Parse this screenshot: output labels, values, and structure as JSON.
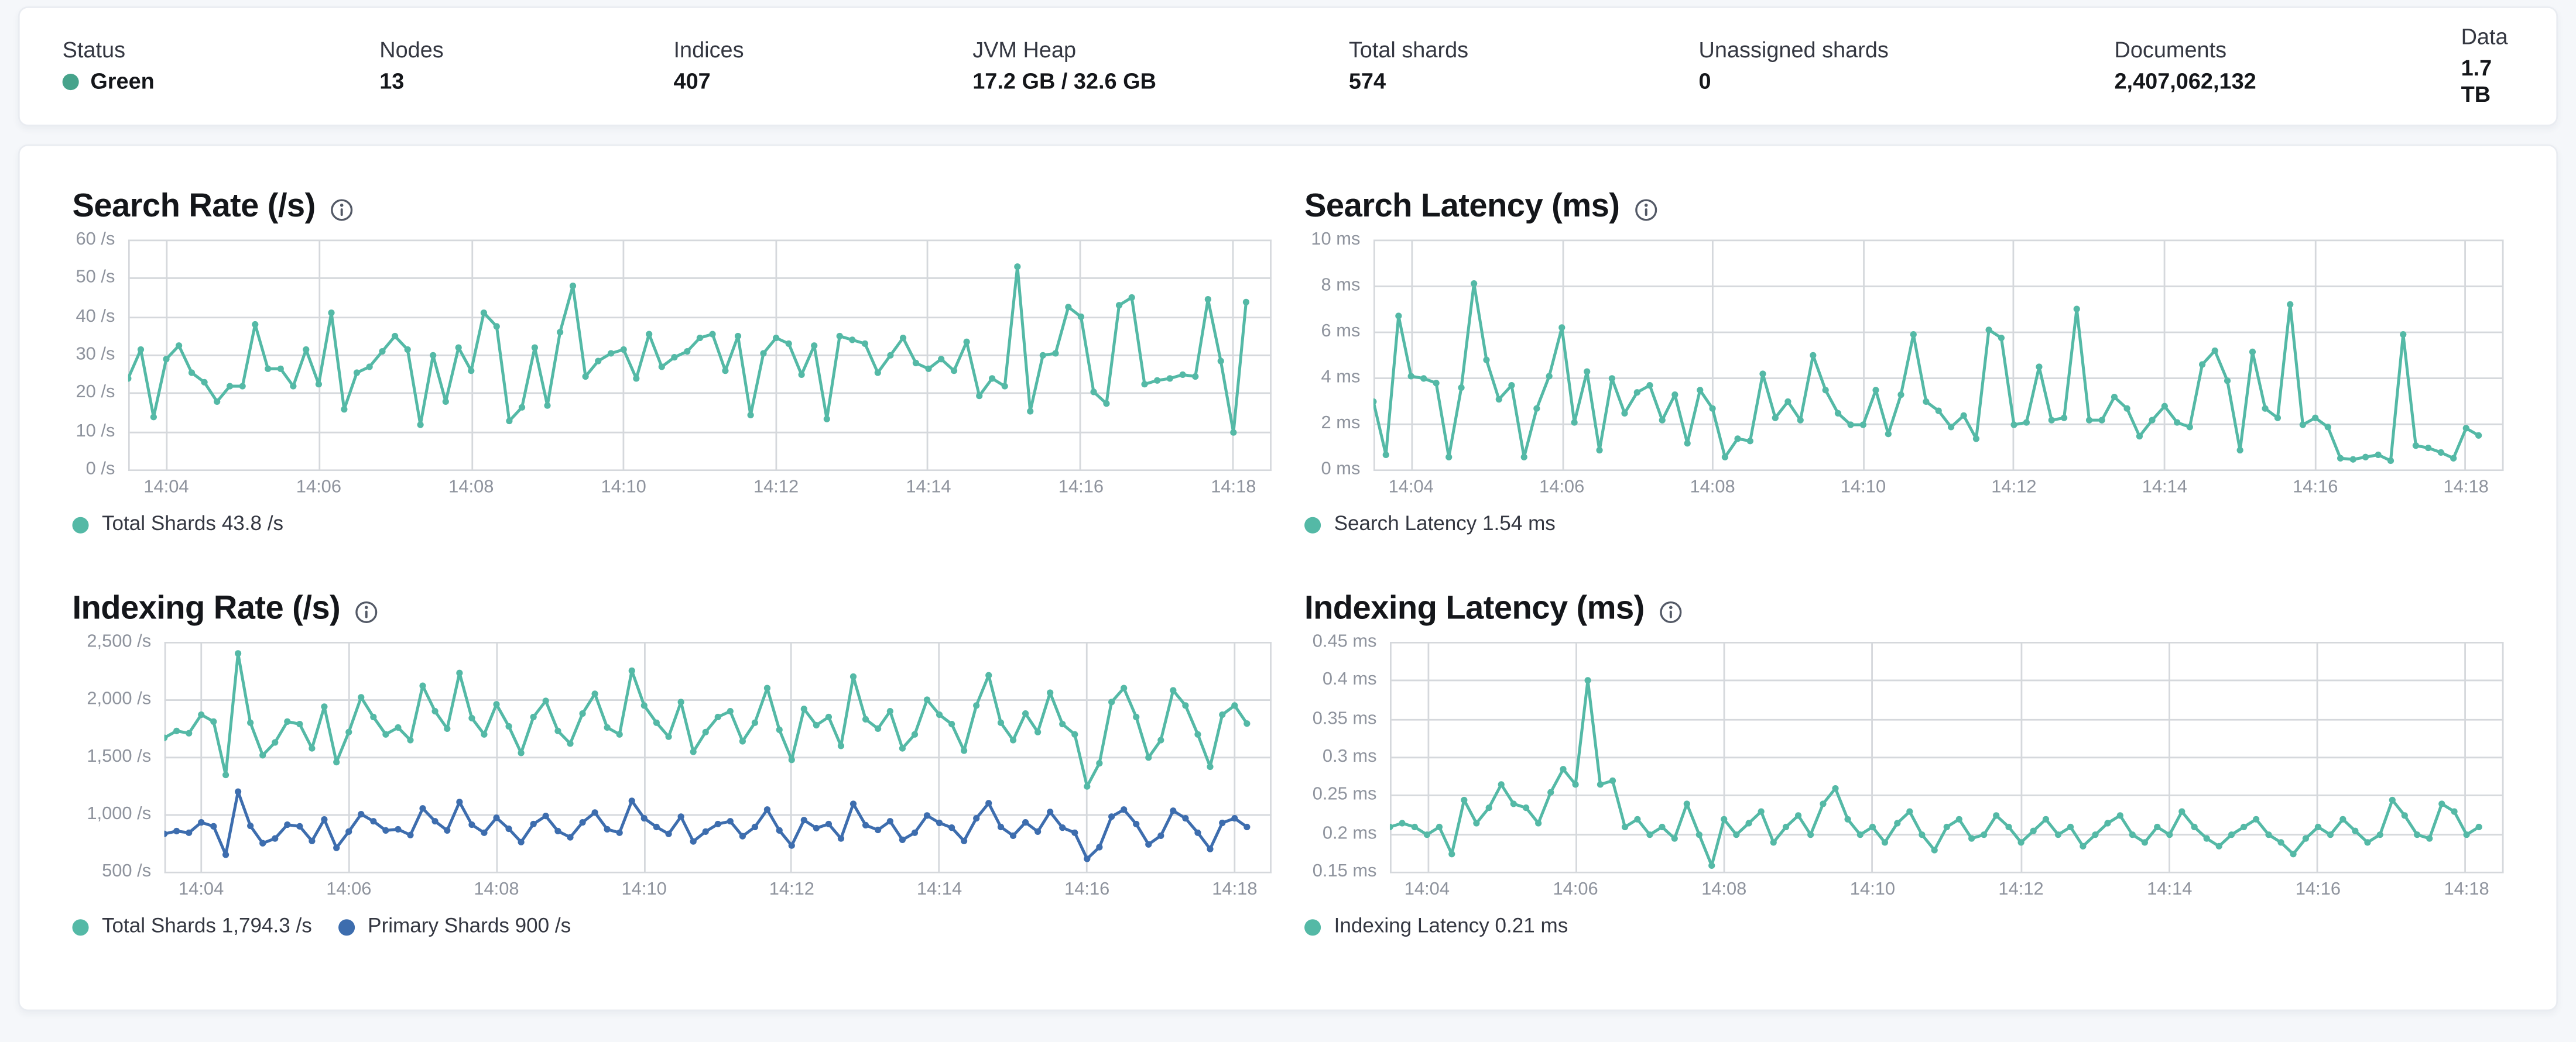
{
  "header": {
    "stats": [
      {
        "label": "Status",
        "value": "Green",
        "type": "health",
        "dot_color": "#46a38b"
      },
      {
        "label": "Nodes",
        "value": "13"
      },
      {
        "label": "Indices",
        "value": "407"
      },
      {
        "label": "JVM Heap",
        "value": "17.2 GB / 32.6 GB"
      },
      {
        "label": "Total shards",
        "value": "574"
      },
      {
        "label": "Unassigned shards",
        "value": "0"
      },
      {
        "label": "Documents",
        "value": "2,407,062,132"
      },
      {
        "label": "Data",
        "value": "1.7 TB"
      }
    ]
  },
  "colors": {
    "teal_series": "#54b9a6",
    "blue_series": "#3d6dae",
    "grid": "#d5d8dc",
    "axis_text": "#8e939d"
  },
  "chart_data": [
    {
      "type": "line",
      "title": "Search Rate (/s)",
      "info_icon": "info-circle",
      "x_tick_labels": [
        "14:04",
        "14:06",
        "14:08",
        "14:10",
        "14:12",
        "14:14",
        "14:16",
        "14:18"
      ],
      "x_tick_indices": [
        3,
        15,
        27,
        39,
        51,
        63,
        75,
        87
      ],
      "x_domain_points": 91,
      "ylim": [
        0,
        60
      ],
      "y_tick_labels": [
        "60 /s",
        "50 /s",
        "40 /s",
        "30 /s",
        "20 /s",
        "10 /s",
        "0 /s"
      ],
      "grid": true,
      "legend_position": "bottom",
      "series": [
        {
          "name": "Total Shards",
          "current": "43.8 /s",
          "legend_label": "Total Shards 43.8 /s",
          "color": "#54b9a6",
          "values": [
            24,
            31.5,
            14,
            29,
            32.5,
            25.5,
            23,
            18,
            22,
            22,
            38,
            26.5,
            26.5,
            22,
            31.5,
            22.5,
            41,
            16,
            25.5,
            27,
            31,
            35,
            31.5,
            12,
            30,
            18,
            32,
            26,
            41,
            37.5,
            13,
            16.5,
            32,
            17,
            36,
            48,
            24.5,
            28.5,
            30.5,
            31.5,
            24,
            35.5,
            27,
            29.5,
            31,
            34.5,
            35.5,
            26,
            35,
            14.5,
            30.5,
            34.5,
            33,
            25,
            32.5,
            13.5,
            35,
            34,
            33,
            25.5,
            30,
            34.5,
            28,
            26.5,
            29,
            26,
            33.5,
            19.5,
            24,
            22,
            53,
            15.5,
            30,
            30.5,
            42.5,
            40,
            20.5,
            17.5,
            43,
            45,
            22.5,
            23.5,
            24,
            25,
            24.5,
            44.5,
            28.5,
            10,
            43.8
          ]
        }
      ]
    },
    {
      "type": "line",
      "title": "Search Latency (ms)",
      "info_icon": "info-circle",
      "x_tick_labels": [
        "14:04",
        "14:06",
        "14:08",
        "14:10",
        "14:12",
        "14:14",
        "14:16",
        "14:18"
      ],
      "x_tick_indices": [
        3,
        15,
        27,
        39,
        51,
        63,
        75,
        87
      ],
      "x_domain_points": 91,
      "ylim": [
        0,
        10
      ],
      "y_tick_labels": [
        "10 ms",
        "8 ms",
        "6 ms",
        "4 ms",
        "2 ms",
        "0 ms"
      ],
      "grid": true,
      "legend_position": "bottom",
      "series": [
        {
          "name": "Search Latency",
          "current": "1.54 ms",
          "legend_label": "Search Latency 1.54 ms",
          "color": "#54b9a6",
          "values": [
            3,
            0.7,
            6.7,
            4.1,
            4,
            3.8,
            0.6,
            3.6,
            8.1,
            4.8,
            3.1,
            3.7,
            0.6,
            2.7,
            4.1,
            6.2,
            2.1,
            4.3,
            0.9,
            4,
            2.5,
            3.4,
            3.7,
            2.2,
            3.3,
            1.2,
            3.5,
            2.7,
            0.6,
            1.4,
            1.3,
            4.2,
            2.3,
            3,
            2.2,
            5,
            3.5,
            2.5,
            2,
            2,
            3.5,
            1.6,
            3.3,
            5.9,
            3,
            2.6,
            1.9,
            2.4,
            1.4,
            6.1,
            5.75,
            2,
            2.1,
            4.5,
            2.2,
            2.3,
            7,
            2.2,
            2.2,
            3.2,
            2.7,
            1.5,
            2.2,
            2.8,
            2.1,
            1.9,
            4.6,
            5.2,
            3.9,
            0.9,
            5.15,
            2.7,
            2.3,
            7.2,
            2,
            2.3,
            1.9,
            0.55,
            0.5,
            0.6,
            0.7,
            0.45,
            5.9,
            1.1,
            1,
            0.8,
            0.55,
            1.85,
            1.54
          ]
        }
      ]
    },
    {
      "type": "line",
      "title": "Indexing Rate (/s)",
      "info_icon": "info-circle",
      "x_tick_labels": [
        "14:04",
        "14:06",
        "14:08",
        "14:10",
        "14:12",
        "14:14",
        "14:16",
        "14:18"
      ],
      "x_tick_indices": [
        3,
        15,
        27,
        39,
        51,
        63,
        75,
        87
      ],
      "x_domain_points": 91,
      "ylim": [
        500,
        2500
      ],
      "y_tick_labels": [
        "2,500 /s",
        "2,000 /s",
        "1,500 /s",
        "1,000 /s",
        "500 /s"
      ],
      "grid": true,
      "legend_position": "bottom",
      "series": [
        {
          "name": "Total Shards",
          "current": "1,794.3 /s",
          "legend_label": "Total Shards 1,794.3 /s",
          "color": "#54b9a6",
          "values": [
            1670,
            1730,
            1710,
            1870,
            1810,
            1350,
            2400,
            1800,
            1520,
            1630,
            1810,
            1790,
            1580,
            1940,
            1460,
            1720,
            2020,
            1850,
            1700,
            1760,
            1650,
            2120,
            1900,
            1750,
            2230,
            1840,
            1700,
            1960,
            1770,
            1540,
            1850,
            1990,
            1730,
            1620,
            1880,
            2050,
            1760,
            1700,
            2250,
            1950,
            1800,
            1680,
            1980,
            1550,
            1720,
            1850,
            1900,
            1640,
            1800,
            2100,
            1740,
            1480,
            1920,
            1780,
            1850,
            1600,
            2200,
            1830,
            1750,
            1900,
            1580,
            1700,
            2000,
            1870,
            1790,
            1560,
            1950,
            2210,
            1800,
            1650,
            1880,
            1720,
            2060,
            1790,
            1700,
            1250,
            1450,
            1980,
            2100,
            1850,
            1500,
            1650,
            2080,
            1950,
            1700,
            1420,
            1870,
            1950,
            1794.3
          ]
        },
        {
          "name": "Primary Shards",
          "current": "900 /s",
          "legend_label": "Primary Shards 900 /s",
          "color": "#3d6dae",
          "values": [
            840,
            865,
            850,
            940,
            905,
            660,
            1205,
            910,
            760,
            800,
            920,
            905,
            780,
            965,
            720,
            860,
            1010,
            950,
            870,
            880,
            830,
            1060,
            950,
            870,
            1115,
            920,
            850,
            980,
            885,
            770,
            925,
            995,
            865,
            810,
            940,
            1025,
            880,
            850,
            1125,
            975,
            900,
            840,
            990,
            775,
            860,
            925,
            950,
            820,
            900,
            1050,
            870,
            740,
            960,
            890,
            925,
            800,
            1100,
            915,
            875,
            950,
            790,
            850,
            1000,
            935,
            895,
            780,
            975,
            1105,
            900,
            825,
            940,
            860,
            1030,
            895,
            850,
            625,
            725,
            990,
            1050,
            925,
            750,
            825,
            1040,
            975,
            850,
            710,
            935,
            975,
            900
          ]
        }
      ]
    },
    {
      "type": "line",
      "title": "Indexing Latency (ms)",
      "info_icon": "info-circle",
      "x_tick_labels": [
        "14:04",
        "14:06",
        "14:08",
        "14:10",
        "14:12",
        "14:14",
        "14:16",
        "14:18"
      ],
      "x_tick_indices": [
        3,
        15,
        27,
        39,
        51,
        63,
        75,
        87
      ],
      "x_domain_points": 91,
      "ylim": [
        0.15,
        0.45
      ],
      "y_tick_labels": [
        "0.45 ms",
        "0.4 ms",
        "0.35 ms",
        "0.3 ms",
        "0.25 ms",
        "0.2 ms",
        "0.15 ms"
      ],
      "grid": true,
      "legend_position": "bottom",
      "series": [
        {
          "name": "Indexing Latency",
          "current": "0.21 ms",
          "legend_label": "Indexing Latency 0.21 ms",
          "color": "#54b9a6",
          "values": [
            0.21,
            0.215,
            0.21,
            0.2,
            0.21,
            0.175,
            0.245,
            0.215,
            0.235,
            0.265,
            0.24,
            0.235,
            0.215,
            0.255,
            0.285,
            0.265,
            0.4,
            0.265,
            0.27,
            0.21,
            0.22,
            0.2,
            0.21,
            0.195,
            0.24,
            0.2,
            0.16,
            0.22,
            0.2,
            0.215,
            0.23,
            0.19,
            0.21,
            0.225,
            0.2,
            0.24,
            0.26,
            0.22,
            0.2,
            0.21,
            0.19,
            0.215,
            0.23,
            0.2,
            0.18,
            0.21,
            0.22,
            0.195,
            0.2,
            0.225,
            0.21,
            0.19,
            0.205,
            0.22,
            0.2,
            0.21,
            0.185,
            0.2,
            0.215,
            0.225,
            0.2,
            0.19,
            0.21,
            0.2,
            0.23,
            0.21,
            0.195,
            0.185,
            0.2,
            0.21,
            0.22,
            0.2,
            0.19,
            0.175,
            0.195,
            0.21,
            0.2,
            0.22,
            0.205,
            0.19,
            0.2,
            0.245,
            0.225,
            0.2,
            0.195,
            0.24,
            0.23,
            0.2,
            0.21
          ]
        }
      ]
    }
  ]
}
